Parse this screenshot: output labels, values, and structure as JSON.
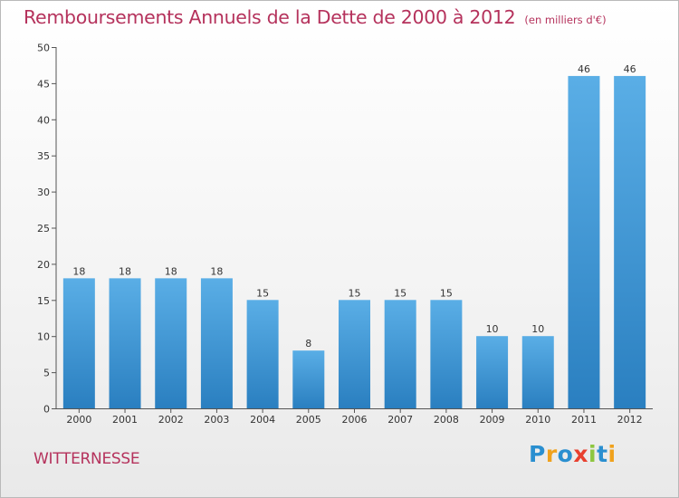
{
  "chart_data": {
    "type": "bar",
    "title": "Remboursements Annuels de la Dette de 2000 à 2012",
    "subtitle": "(en milliers d'€)",
    "categories": [
      "2000",
      "2001",
      "2002",
      "2003",
      "2004",
      "2005",
      "2006",
      "2007",
      "2008",
      "2009",
      "2010",
      "2011",
      "2012"
    ],
    "values": [
      18,
      18,
      18,
      18,
      15,
      8,
      15,
      15,
      15,
      10,
      10,
      46,
      46
    ],
    "value_labels": [
      "18",
      "18",
      "18",
      "18",
      "15",
      "8",
      "15",
      "15",
      "15",
      "10",
      "10",
      "46",
      "46"
    ],
    "ylim": [
      0,
      50
    ],
    "yticks": [
      0,
      5,
      10,
      15,
      20,
      25,
      30,
      35,
      40,
      45,
      50
    ],
    "ytick_labels": [
      "0",
      "5",
      "10",
      "15",
      "20",
      "25",
      "30",
      "35",
      "40",
      "45",
      "50"
    ],
    "grid": false,
    "xlabel": "",
    "ylabel": "",
    "bar_color": "#3f97d8"
  },
  "commune": "WITTERNESSE",
  "brand": {
    "letters": [
      "P",
      "r",
      "o",
      "x",
      "i",
      "t",
      "i"
    ],
    "colors": [
      "#2a8fd0",
      "#f0a21d",
      "#2a8fd0",
      "#e8402f",
      "#8ec63f",
      "#2a8fd0",
      "#f0a21d"
    ]
  },
  "colors": {
    "title": "#b5325c",
    "axis": "#555555"
  }
}
